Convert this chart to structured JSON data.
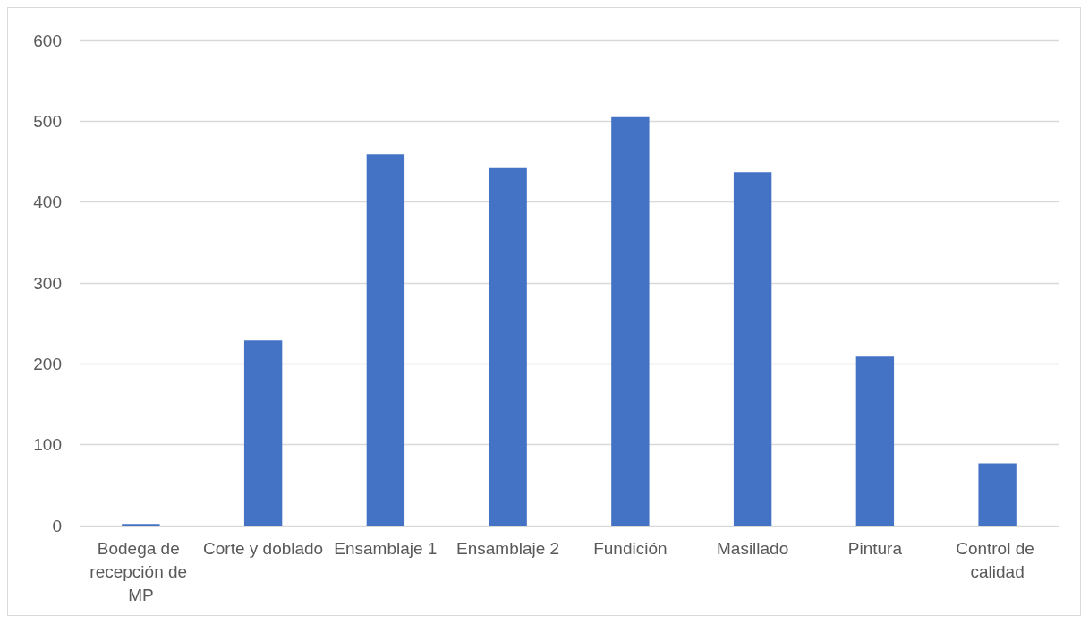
{
  "chart_data": {
    "type": "bar",
    "categories": [
      "Bodega de recepción de MP",
      "Corte y doblado",
      "Ensamblaje 1",
      "Ensamblaje 2",
      "Fundición",
      "Masillado",
      "Pintura",
      "Control de calidad"
    ],
    "values": [
      2,
      229,
      459,
      442,
      505,
      437,
      209,
      77
    ],
    "color": "#4472c4",
    "ylim": [
      0,
      600
    ],
    "yticks": [
      0,
      100,
      200,
      300,
      400,
      500,
      600
    ],
    "grid": "y"
  }
}
